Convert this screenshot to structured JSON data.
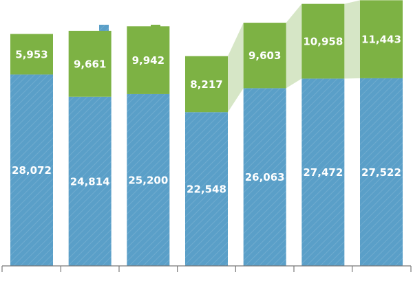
{
  "chart_data": {
    "type": "bar",
    "stacked": true,
    "categories": [
      "",
      "",
      "",
      "",
      "",
      "",
      ""
    ],
    "series": [
      {
        "values": [
          28072,
          24814,
          25200,
          22548,
          26063,
          27472,
          27522
        ],
        "color": "#5a9fc8",
        "hatched": true
      },
      {
        "values": [
          5953,
          9661,
          9942,
          8217,
          9603,
          10958,
          11443
        ],
        "color": "#7db244"
      }
    ],
    "labels": {
      "bottom": [
        "28,072",
        "24,814",
        "25,200",
        "22,548",
        "26,063",
        "27,472",
        "27,522"
      ],
      "top": [
        "5,953",
        "9,661",
        "9,942",
        "8,217",
        "9,603",
        "10,958",
        "11,443"
      ]
    },
    "connector_color": "#d6e6c6",
    "legend": {
      "position": "top-left",
      "items": [
        "blue-swatch",
        "green-swatch"
      ]
    },
    "ylim": [
      0,
      39000
    ],
    "grid": false
  }
}
